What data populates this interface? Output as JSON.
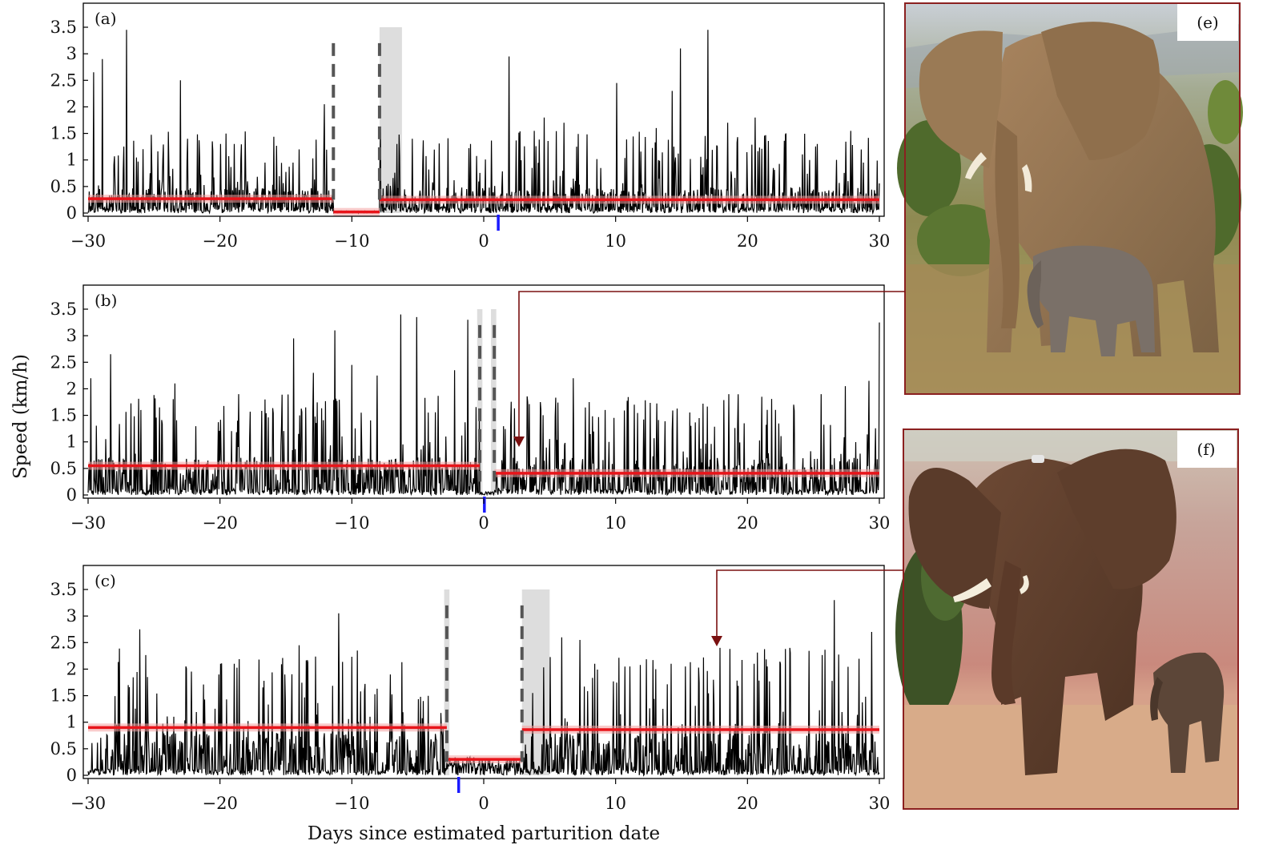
{
  "figure": {
    "xlabel": "Days since estimated parturition date",
    "ylabel": "Speed (km/h)",
    "photo_labels": [
      "(e)",
      "(f)"
    ]
  },
  "colors": {
    "trace": "#000000",
    "segment_mean": "#e8141a",
    "segment_band": "#f4a0a0",
    "changepoint": "#555555",
    "shade": "#dddddd",
    "parturition_tick": "#1a1aff",
    "arrow": "#7a1010",
    "photo_border": "#8b2020"
  },
  "photos": [
    {
      "label": "(e)",
      "subject": "elephant cow standing with small calf beneath her, dry savanna"
    },
    {
      "label": "(f)",
      "subject": "collared elephant cow walking with calf near river"
    }
  ],
  "chart_data": [
    {
      "type": "line",
      "panel": "(a)",
      "xlabel": "",
      "ylabel": "",
      "xlim": [
        -30,
        30
      ],
      "ylim": [
        0,
        3.5
      ],
      "xticks": [
        -30,
        -20,
        -10,
        0,
        10,
        20,
        30
      ],
      "yticks": [
        0,
        0.5,
        1,
        1.5,
        2,
        2.5,
        3,
        3.5
      ],
      "ytick_labels": [
        "0",
        "0.5",
        "1",
        "1.5",
        "2",
        "2.5",
        "3",
        "3.5"
      ],
      "xtick_labels": [
        "−30",
        "−20",
        "−10",
        "0",
        "10",
        "20",
        "30"
      ],
      "segments": [
        {
          "x0": -30,
          "x1": -11.4,
          "mean": 0.27
        },
        {
          "x0": -11.4,
          "x1": -7.9,
          "mean": 0.02
        },
        {
          "x0": -7.9,
          "x1": 30,
          "mean": 0.25
        }
      ],
      "changepoints": [
        -11.4,
        -7.9
      ],
      "shaded": [
        [
          -7.9,
          -6.2
        ]
      ],
      "parturition": 1.1,
      "peaks": [
        [
          -29.6,
          2.65
        ],
        [
          -28.9,
          2.9
        ],
        [
          -27.1,
          3.45
        ],
        [
          -23.0,
          2.5
        ],
        [
          -20.6,
          1.35
        ],
        [
          -18.9,
          1.3
        ],
        [
          -16.6,
          0.95
        ],
        [
          -14.0,
          1.2
        ],
        [
          -12.1,
          2.05
        ],
        [
          -6.6,
          1.3
        ],
        [
          -5.4,
          1.4
        ],
        [
          -1.0,
          1.3
        ],
        [
          1.9,
          2.95
        ],
        [
          4.6,
          1.8
        ],
        [
          6.1,
          1.7
        ],
        [
          10.1,
          2.45
        ],
        [
          13.1,
          1.6
        ],
        [
          14.3,
          2.3
        ],
        [
          14.9,
          3.1
        ],
        [
          17.0,
          3.45
        ],
        [
          18.5,
          1.7
        ],
        [
          20.6,
          1.8
        ],
        [
          22.9,
          1.5
        ],
        [
          25.3,
          1.3
        ],
        [
          28.8,
          0.95
        ]
      ],
      "noise": {
        "seed": 11,
        "base": 0.3,
        "spike_max": 1.25,
        "quiet": [
          -11.4,
          -7.9
        ],
        "quiet_max": 0.04
      }
    },
    {
      "type": "line",
      "panel": "(b)",
      "xlabel": "",
      "ylabel": "",
      "xlim": [
        -30,
        30
      ],
      "ylim": [
        0,
        3.5
      ],
      "xticks": [
        -30,
        -20,
        -10,
        0,
        10,
        20,
        30
      ],
      "yticks": [
        0,
        0.5,
        1,
        1.5,
        2,
        2.5,
        3,
        3.5
      ],
      "ytick_labels": [
        "0",
        "0.5",
        "1",
        "1.5",
        "2",
        "2.5",
        "3",
        "3.5"
      ],
      "xtick_labels": [
        "−30",
        "−20",
        "−10",
        "0",
        "10",
        "20",
        "30"
      ],
      "segments": [
        {
          "x0": -30,
          "x1": -0.3,
          "mean": 0.55
        },
        {
          "x0": 0.8,
          "x1": 30,
          "mean": 0.41
        }
      ],
      "changepoints": [
        -0.3,
        0.8
      ],
      "shaded": [
        [
          -0.5,
          -0.1
        ],
        [
          0.55,
          0.95
        ]
      ],
      "parturition": 0.05,
      "peaks": [
        [
          -29.8,
          2.2
        ],
        [
          -28.3,
          2.65
        ],
        [
          -26.0,
          1.6
        ],
        [
          -24.6,
          1.65
        ],
        [
          -23.4,
          2.1
        ],
        [
          -18.6,
          1.9
        ],
        [
          -16.6,
          1.8
        ],
        [
          -14.4,
          2.95
        ],
        [
          -12.9,
          2.3
        ],
        [
          -11.3,
          3.1
        ],
        [
          -10.0,
          2.45
        ],
        [
          -8.1,
          2.25
        ],
        [
          -6.3,
          3.4
        ],
        [
          -5.1,
          3.35
        ],
        [
          -2.2,
          2.35
        ],
        [
          -1.2,
          3.3
        ],
        [
          4.3,
          1.75
        ],
        [
          6.8,
          2.2
        ],
        [
          9.2,
          1.6
        ],
        [
          11.4,
          1.7
        ],
        [
          18.6,
          1.9
        ],
        [
          21.1,
          1.85
        ],
        [
          23.5,
          1.7
        ],
        [
          25.6,
          1.9
        ],
        [
          27.4,
          2.05
        ],
        [
          29.2,
          2.15
        ],
        [
          30.0,
          3.25
        ]
      ],
      "noise": {
        "seed": 23,
        "base": 0.45,
        "spike_max": 1.45,
        "quiet": [
          -0.3,
          0.8
        ],
        "quiet_max": 0.06
      }
    },
    {
      "type": "line",
      "panel": "(c)",
      "xlabel": "",
      "ylabel": "",
      "xlim": [
        -30,
        30
      ],
      "ylim": [
        0,
        3.5
      ],
      "xticks": [
        -30,
        -20,
        -10,
        0,
        10,
        20,
        30
      ],
      "yticks": [
        0,
        0.5,
        1,
        1.5,
        2,
        2.5,
        3,
        3.5
      ],
      "ytick_labels": [
        "0",
        "0.5",
        "1",
        "1.5",
        "2",
        "2.5",
        "3",
        "3.5"
      ],
      "xtick_labels": [
        "−30",
        "−20",
        "−10",
        "0",
        "10",
        "20",
        "30"
      ],
      "segments": [
        {
          "x0": -30,
          "x1": -2.8,
          "mean": 0.9
        },
        {
          "x0": -2.8,
          "x1": 2.9,
          "mean": 0.3
        },
        {
          "x0": 2.9,
          "x1": 30,
          "mean": 0.86
        }
      ],
      "changepoints": [
        -2.8,
        2.9
      ],
      "shaded": [
        [
          -3.0,
          -2.6
        ],
        [
          2.9,
          5.0
        ]
      ],
      "parturition": -1.9,
      "peaks": [
        [
          -26.1,
          2.75
        ],
        [
          -22.6,
          2.05
        ],
        [
          -20.1,
          1.9
        ],
        [
          -18.9,
          2.1
        ],
        [
          -15.1,
          1.9
        ],
        [
          -14.0,
          2.45
        ],
        [
          -11.0,
          3.05
        ],
        [
          -9.6,
          2.35
        ],
        [
          -7.1,
          1.9
        ],
        [
          -4.6,
          1.4
        ],
        [
          3.7,
          1.55
        ],
        [
          5.9,
          2.6
        ],
        [
          7.3,
          2.55
        ],
        [
          11.1,
          2.05
        ],
        [
          14.2,
          2.1
        ],
        [
          15.3,
          2.05
        ],
        [
          17.9,
          2.4
        ],
        [
          20.5,
          2.1
        ],
        [
          21.5,
          2.05
        ],
        [
          23.2,
          2.4
        ],
        [
          26.6,
          3.3
        ],
        [
          29.4,
          2.7
        ]
      ],
      "noise": {
        "seed": 37,
        "base": 0.5,
        "spike_max": 1.9,
        "quiet": [
          -2.8,
          2.9
        ],
        "quiet_max": 0.35
      }
    }
  ]
}
